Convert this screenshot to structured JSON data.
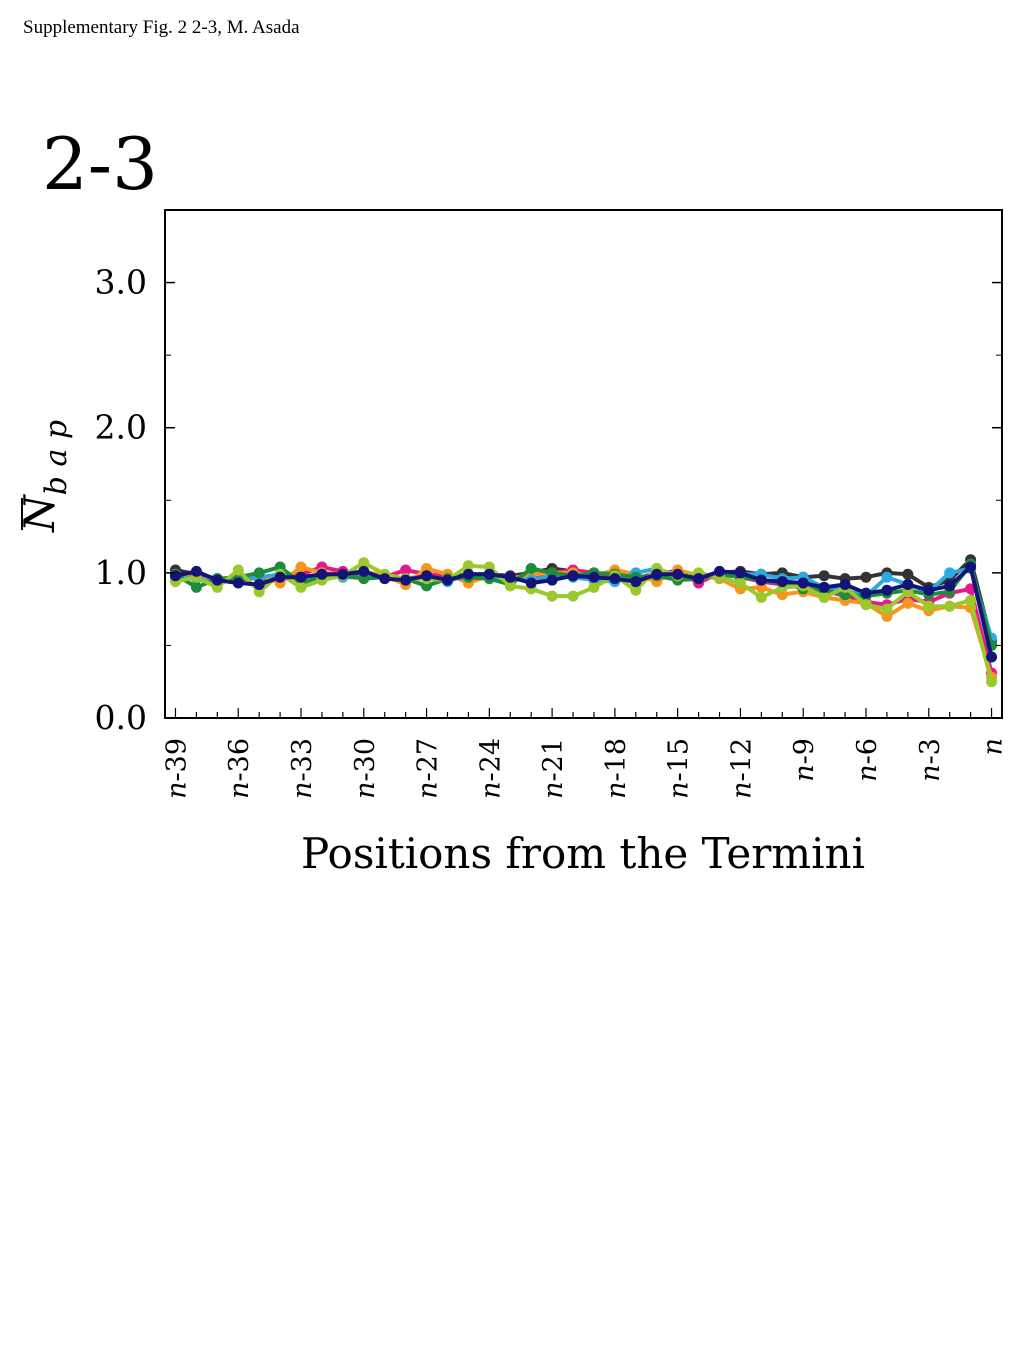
{
  "page": {
    "caption": "Supplementary Fig. 2 2-3, M. Asada",
    "panel_label": "2-3"
  },
  "chart_data": {
    "type": "line",
    "title": "",
    "xlabel": "Positions from the Termini",
    "ylabel_base": "N",
    "ylabel_sub": "b a p",
    "ylim": [
      0.0,
      3.5
    ],
    "yticks": [
      0.0,
      1.0,
      2.0,
      3.0
    ],
    "ytick_labels": [
      "0.0",
      "1.0",
      "2.0",
      "3.0"
    ],
    "yminor": [
      0.5,
      1.5,
      2.5
    ],
    "x": [
      -39,
      -38,
      -37,
      -36,
      -35,
      -34,
      -33,
      -32,
      -31,
      -30,
      -29,
      -28,
      -27,
      -26,
      -25,
      -24,
      -23,
      -22,
      -21,
      -20,
      -19,
      -18,
      -17,
      -16,
      -15,
      -14,
      -13,
      -12,
      -11,
      -10,
      -9,
      -8,
      -7,
      -6,
      -5,
      -4,
      -3,
      -2,
      -1,
      0
    ],
    "xlim": [
      -39.5,
      0.5
    ],
    "xtick_positions": [
      -39,
      -36,
      -33,
      -30,
      -27,
      -24,
      -21,
      -18,
      -15,
      -12,
      -9,
      -6,
      -3,
      0
    ],
    "xtick_labels": [
      "n-39",
      "n-36",
      "n-33",
      "n-30",
      "n-27",
      "n-24",
      "n-21",
      "n-18",
      "n-15",
      "n-12",
      "n-9",
      "n-6",
      "n-3",
      "n"
    ],
    "grid": false,
    "series": [
      {
        "color": "#333333",
        "values": [
          1.02,
          0.99,
          0.96,
          0.95,
          0.97,
          0.98,
          0.97,
          0.99,
          1.0,
          0.99,
          0.97,
          0.96,
          0.98,
          0.97,
          0.99,
          0.99,
          0.98,
          1.0,
          1.03,
          1.01,
          0.99,
          0.98,
          0.96,
          1.0,
          1.01,
          0.97,
          1.0,
          1.01,
          0.99,
          1.0,
          0.97,
          0.98,
          0.96,
          0.97,
          1.0,
          0.99,
          0.9,
          0.95,
          1.09,
          0.53
        ]
      },
      {
        "color": "#e6198c",
        "values": [
          0.98,
          0.97,
          0.95,
          0.97,
          0.96,
          0.97,
          0.99,
          1.04,
          1.01,
          1.0,
          0.97,
          1.02,
          0.99,
          0.98,
          0.96,
          0.99,
          0.97,
          0.95,
          1.0,
          1.02,
          1.0,
          0.97,
          0.96,
          1.0,
          1.01,
          0.93,
          1.0,
          0.97,
          0.94,
          0.92,
          0.93,
          0.88,
          0.84,
          0.8,
          0.78,
          0.82,
          0.8,
          0.86,
          0.89,
          0.31
        ]
      },
      {
        "color": "#f5961e",
        "values": [
          0.99,
          0.96,
          0.95,
          0.97,
          0.99,
          0.93,
          1.04,
          1.0,
          0.99,
          1.01,
          0.98,
          0.92,
          1.03,
          0.99,
          0.93,
          0.98,
          0.96,
          0.99,
          1.0,
          1.0,
          0.98,
          1.02,
          0.99,
          0.94,
          1.02,
          0.98,
          0.96,
          0.89,
          0.9,
          0.85,
          0.87,
          0.83,
          0.81,
          0.79,
          0.7,
          0.79,
          0.74,
          0.77,
          0.76,
          0.28
        ]
      },
      {
        "color": "#2aaae0",
        "values": [
          0.97,
          0.96,
          0.94,
          0.96,
          0.97,
          0.99,
          0.96,
          0.98,
          0.97,
          0.97,
          0.98,
          0.96,
          0.97,
          0.94,
          0.99,
          0.98,
          0.96,
          0.95,
          0.98,
          0.97,
          0.95,
          0.94,
          1.0,
          1.03,
          0.97,
          0.99,
          0.97,
          0.99,
          0.99,
          0.96,
          0.97,
          0.9,
          0.88,
          0.84,
          0.97,
          0.92,
          0.87,
          1.0,
          1.03,
          0.55
        ]
      },
      {
        "color": "#1e8c3c",
        "values": [
          0.99,
          0.9,
          0.96,
          0.97,
          1.0,
          1.04,
          0.93,
          0.97,
          0.98,
          0.96,
          0.97,
          0.96,
          0.91,
          0.96,
          0.97,
          0.96,
          0.92,
          1.03,
          1.0,
          0.98,
          1.0,
          0.99,
          0.97,
          0.98,
          0.95,
          0.96,
          0.99,
          0.97,
          0.95,
          0.93,
          0.89,
          0.88,
          0.85,
          0.84,
          0.86,
          0.88,
          0.85,
          0.87,
          1.06,
          0.5
        ]
      },
      {
        "color": "#9bc82d",
        "values": [
          0.94,
          0.97,
          0.9,
          1.02,
          0.87,
          0.99,
          0.9,
          0.95,
          0.98,
          1.07,
          0.99,
          0.96,
          0.96,
          0.95,
          1.05,
          1.04,
          0.91,
          0.89,
          0.84,
          0.84,
          0.9,
          0.98,
          0.88,
          1.03,
          0.98,
          1.0,
          0.97,
          0.93,
          0.83,
          0.9,
          0.91,
          0.83,
          0.9,
          0.78,
          0.75,
          0.87,
          0.77,
          0.77,
          0.81,
          0.25
        ]
      },
      {
        "color": "#141478",
        "values": [
          0.98,
          1.01,
          0.95,
          0.93,
          0.92,
          0.97,
          0.97,
          0.99,
          0.99,
          1.01,
          0.96,
          0.95,
          0.98,
          0.95,
          0.99,
          0.99,
          0.97,
          0.93,
          0.95,
          0.98,
          0.97,
          0.96,
          0.94,
          0.99,
          0.99,
          0.96,
          1.01,
          1.0,
          0.95,
          0.94,
          0.93,
          0.9,
          0.92,
          0.86,
          0.88,
          0.92,
          0.88,
          0.91,
          1.04,
          0.42
        ]
      }
    ]
  }
}
